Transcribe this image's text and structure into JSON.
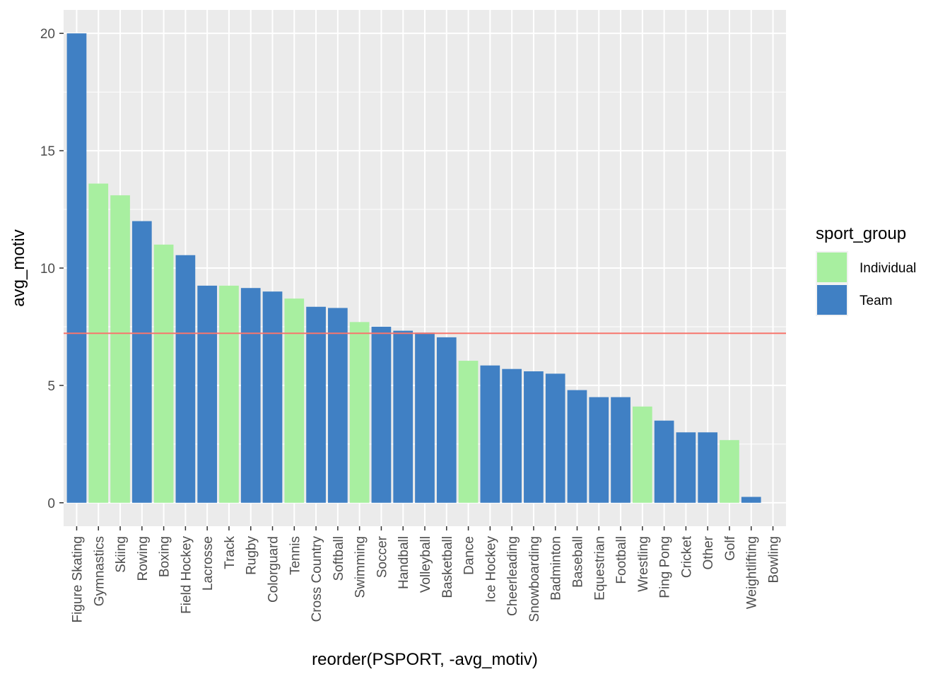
{
  "chart_data": {
    "type": "bar",
    "xlabel": "reorder(PSPORT, -avg_motiv)",
    "ylabel": "avg_motiv",
    "ylim": [
      -1,
      21
    ],
    "yticks": [
      0,
      5,
      10,
      15,
      20
    ],
    "reference_line": 7.22,
    "reference_line_color": "#F8766D",
    "colors": {
      "Individual": "#A8EFA0",
      "Team": "#4080C4"
    },
    "legend": {
      "title": "sport_group",
      "position": "right",
      "entries": [
        "Individual",
        "Team"
      ]
    },
    "categories": [
      "Figure Skating",
      "Gymnastics",
      "Skiing",
      "Rowing",
      "Boxing",
      "Field Hockey",
      "Lacrosse",
      "Track",
      "Rugby",
      "Colorguard",
      "Tennis",
      "Cross Country",
      "Softball",
      "Swimming",
      "Soccer",
      "Handball",
      "Volleyball",
      "Basketball",
      "Dance",
      "Ice Hockey",
      "Cheerleading",
      "Snowboarding",
      "Badminton",
      "Baseball",
      "Equestrian",
      "Football",
      "Wrestling",
      "Ping Pong",
      "Cricket",
      "Other",
      "Golf",
      "Weightlifting",
      "Bowling"
    ],
    "values": [
      20.0,
      13.6,
      13.1,
      12.0,
      11.0,
      10.55,
      9.25,
      9.25,
      9.15,
      9.0,
      8.7,
      8.35,
      8.3,
      7.7,
      7.5,
      7.33,
      7.25,
      7.05,
      6.05,
      5.85,
      5.7,
      5.6,
      5.5,
      4.8,
      4.5,
      4.5,
      4.1,
      3.5,
      3.0,
      3.0,
      2.67,
      0.25,
      0
    ],
    "groups": [
      "Team",
      "Individual",
      "Individual",
      "Team",
      "Individual",
      "Team",
      "Team",
      "Individual",
      "Team",
      "Team",
      "Individual",
      "Team",
      "Team",
      "Individual",
      "Team",
      "Team",
      "Team",
      "Team",
      "Individual",
      "Team",
      "Team",
      "Team",
      "Team",
      "Team",
      "Team",
      "Team",
      "Individual",
      "Team",
      "Team",
      "Team",
      "Individual",
      "Team",
      "Team"
    ]
  }
}
